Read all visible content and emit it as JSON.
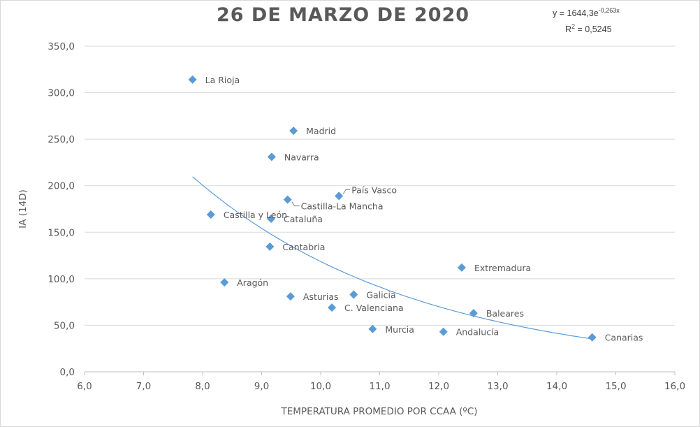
{
  "chart_data": {
    "type": "scatter",
    "title": "26 DE MARZO DE 2020",
    "xlabel": "TEMPERATURA  PROMEDIO POR CCAA (ºC)",
    "ylabel": "IA (14D)",
    "xlim": [
      6.0,
      16.0
    ],
    "ylim": [
      0.0,
      350.0
    ],
    "xticks": [
      "6,0",
      "7,0",
      "8,0",
      "9,0",
      "10,0",
      "11,0",
      "12,0",
      "13,0",
      "14,0",
      "15,0",
      "16,0"
    ],
    "yticks": [
      "0,0",
      "50,0",
      "100,0",
      "150,0",
      "200,0",
      "250,0",
      "300,0",
      "350,0"
    ],
    "grid": "horizontal",
    "marker_color": "#5b9bd5",
    "trend_color": "#5b9bd5",
    "points": [
      {
        "label": "La Rioja",
        "x": 7.83,
        "y": 314
      },
      {
        "label": "Madrid",
        "x": 9.54,
        "y": 259
      },
      {
        "label": "Navarra",
        "x": 9.17,
        "y": 231
      },
      {
        "label": "País Vasco",
        "x": 10.31,
        "y": 189
      },
      {
        "label": "Castilla-La Mancha",
        "x": 9.44,
        "y": 185
      },
      {
        "label": "Castilla y León",
        "x": 8.14,
        "y": 169
      },
      {
        "label": "Cataluña",
        "x": 9.16,
        "y": 164.5
      },
      {
        "label": "Cantabria",
        "x": 9.14,
        "y": 134.5
      },
      {
        "label": "Extremadura",
        "x": 12.39,
        "y": 112
      },
      {
        "label": "Aragón",
        "x": 8.37,
        "y": 96
      },
      {
        "label": "Asturias",
        "x": 9.49,
        "y": 81
      },
      {
        "label": "Galicia",
        "x": 10.56,
        "y": 83
      },
      {
        "label": "C. Valenciana",
        "x": 10.19,
        "y": 69
      },
      {
        "label": "Murcia",
        "x": 10.88,
        "y": 46
      },
      {
        "label": "Andalucía",
        "x": 12.08,
        "y": 43
      },
      {
        "label": "Baleares",
        "x": 12.59,
        "y": 63
      },
      {
        "label": "Canarias",
        "x": 14.6,
        "y": 37
      }
    ],
    "trendline": {
      "type": "exponential",
      "a": 1644.3,
      "b": -0.263,
      "x_range": [
        7.83,
        14.6
      ],
      "equation_prefix": "y = 1644,3e",
      "equation_exponent": "-0,263x",
      "r2_prefix": "R",
      "r2_sup": "2",
      "r2_value": " = 0,5245"
    }
  }
}
